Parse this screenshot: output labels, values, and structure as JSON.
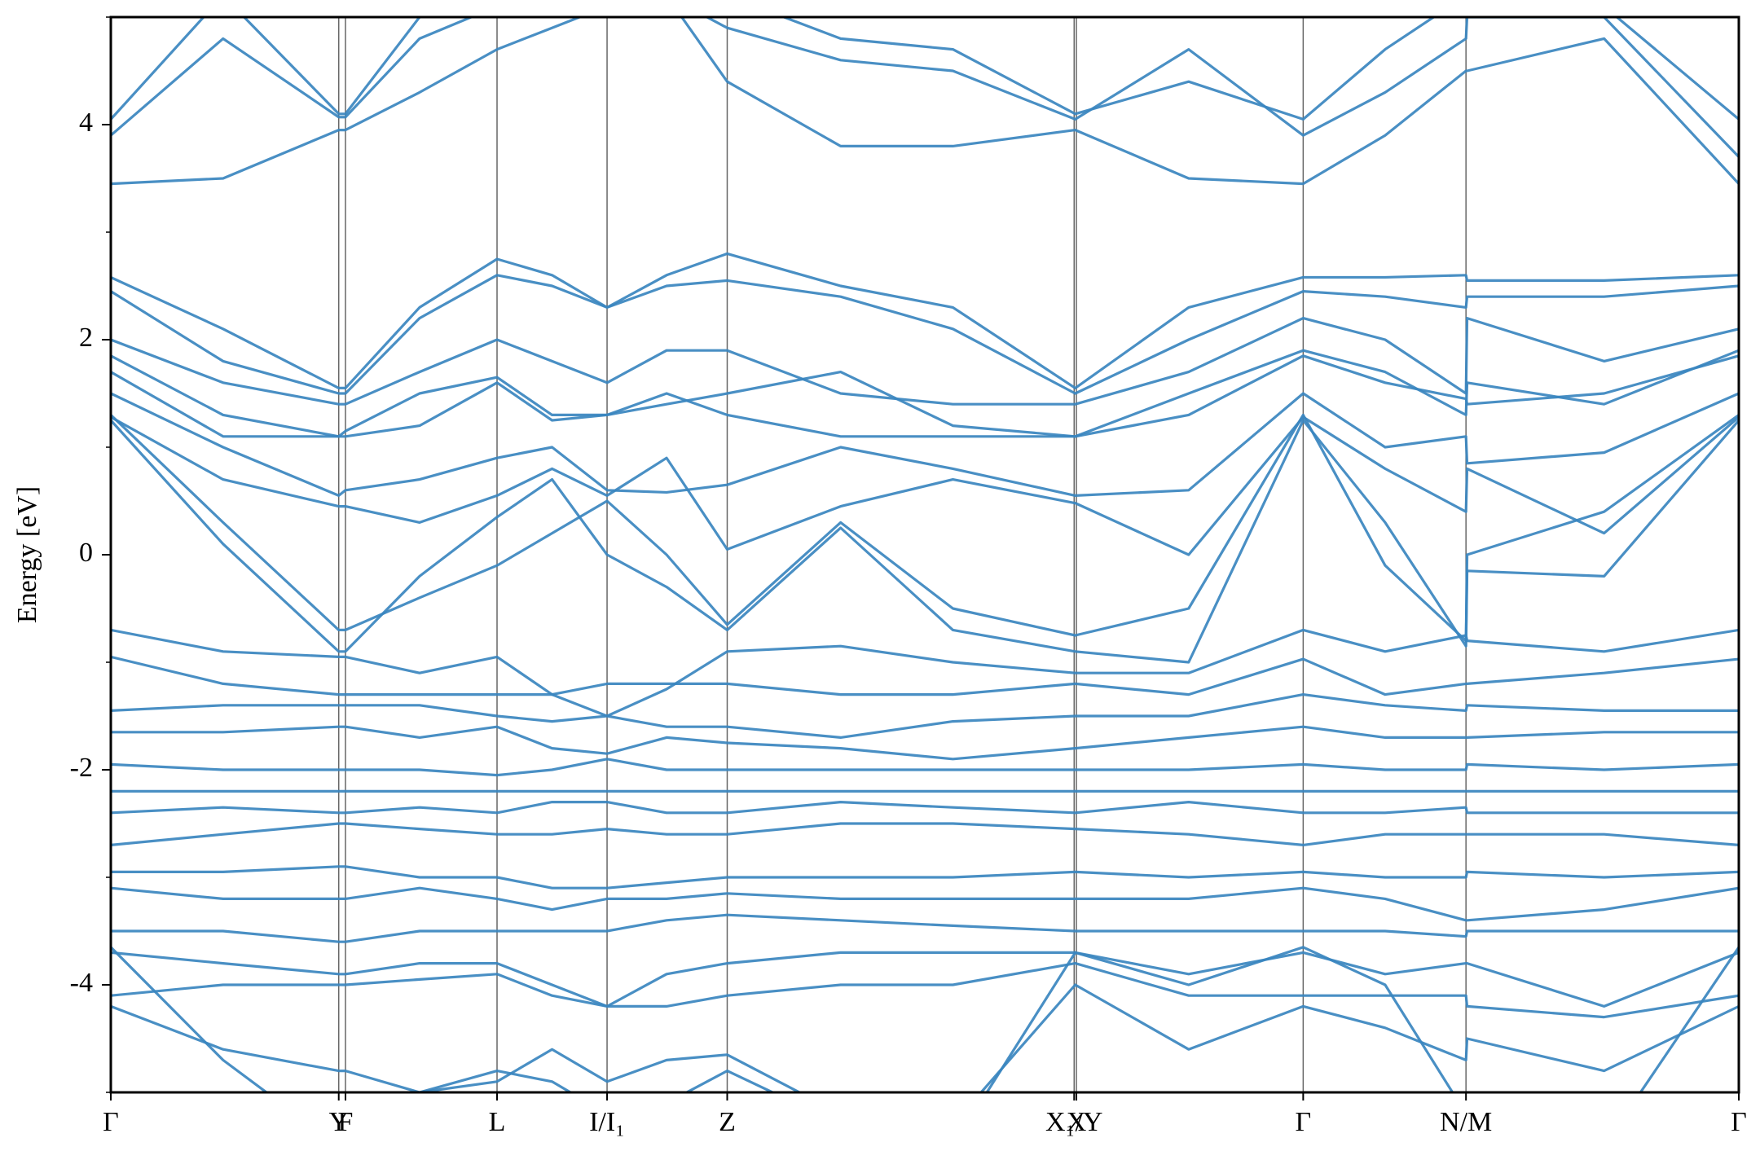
{
  "chart_data": {
    "type": "line",
    "y_label": "Energy [eV]",
    "color": "#3a85bf",
    "grid": true,
    "xlim": [
      0,
      14.5
    ],
    "xticks": [
      {
        "value": 0,
        "label": "Γ"
      },
      {
        "value": 2.03,
        "label": "Y"
      },
      {
        "value": 2.09,
        "label": "F"
      },
      {
        "value": 3.44,
        "label": "L"
      },
      {
        "value": 4.42,
        "label": "I/I₁"
      },
      {
        "value": 5.49,
        "label": "Z"
      },
      {
        "value": 8.58,
        "label": "X₁/Y"
      },
      {
        "value": 8.6,
        "label": "X"
      },
      {
        "value": 10.62,
        "label": "Γ"
      },
      {
        "value": 12.07,
        "label": "N/M"
      },
      {
        "value": 14.5,
        "label": "Γ"
      }
    ],
    "ylim": [
      -5,
      5
    ],
    "yticks": [
      -4,
      -2,
      0,
      2,
      4
    ],
    "yminorticks": [
      -5,
      -3,
      -1,
      1,
      3,
      5
    ],
    "x": [
      0,
      1,
      2.03,
      2.09,
      2.75,
      3.44,
      3.93,
      4.42,
      4.95,
      5.49,
      6.5,
      7.5,
      8.59,
      9.6,
      10.62,
      11.35,
      12.07,
      12.08,
      13.3,
      14.5
    ],
    "series": [
      {
        "values": [
          3.45,
          3.5,
          3.95,
          3.95,
          4.3,
          4.7,
          4.9,
          5.1,
          5.2,
          4.4,
          3.8,
          3.8,
          3.95,
          3.5,
          3.45,
          3.9,
          4.5,
          4.5,
          4.8,
          3.45
        ]
      },
      {
        "values": [
          3.9,
          4.8,
          4.07,
          4.07,
          4.8,
          5.1,
          5.3,
          5.3,
          5.2,
          4.9,
          4.6,
          4.5,
          4.05,
          4.7,
          3.9,
          4.3,
          4.8,
          5,
          5,
          3.7
        ]
      },
      {
        "values": [
          4.05,
          5.2,
          4.1,
          4.1,
          5,
          5.2,
          5.3,
          5.3,
          5.3,
          5.2,
          4.8,
          4.7,
          4.1,
          4.4,
          4.05,
          4.7,
          5.2,
          5.2,
          5.1,
          4.05
        ]
      },
      {
        "values": [
          1.3,
          0.3,
          -0.7,
          -0.7,
          -0.4,
          -0.1,
          0.2,
          0.5,
          0,
          -0.65,
          0.3,
          -0.5,
          -0.75,
          -0.5,
          1.3,
          -0.1,
          -0.8,
          0,
          0.4,
          1.3
        ]
      },
      {
        "values": [
          1.25,
          0.1,
          -0.9,
          -0.9,
          -0.2,
          0.35,
          0.7,
          0,
          -0.3,
          -0.7,
          0.25,
          -0.7,
          -0.9,
          -1,
          1.25,
          0.3,
          -0.85,
          -0.15,
          -0.2,
          1.25
        ]
      },
      {
        "values": [
          1.28,
          0.7,
          0.45,
          0.45,
          0.3,
          0.55,
          0.8,
          0.55,
          0.9,
          0.05,
          0.45,
          0.7,
          0.48,
          0,
          1.28,
          0.8,
          0.4,
          0.8,
          0.2,
          1.28
        ]
      },
      {
        "values": [
          1.5,
          1,
          0.55,
          0.6,
          0.7,
          0.9,
          1,
          0.6,
          0.58,
          0.65,
          1,
          0.8,
          0.55,
          0.6,
          1.5,
          1,
          1.1,
          0.85,
          0.95,
          1.5
        ]
      },
      {
        "values": [
          1.7,
          1.1,
          1.1,
          1.1,
          1.2,
          1.6,
          1.25,
          1.3,
          1.4,
          1.5,
          1.7,
          1.2,
          1.1,
          1.3,
          1.85,
          1.6,
          1.45,
          1.4,
          1.5,
          1.85
        ]
      },
      {
        "values": [
          1.85,
          1.3,
          1.1,
          1.15,
          1.5,
          1.65,
          1.3,
          1.3,
          1.5,
          1.3,
          1.1,
          1.1,
          1.1,
          1.5,
          1.9,
          1.7,
          1.3,
          1.6,
          1.4,
          1.9
        ]
      },
      {
        "values": [
          2,
          1.6,
          1.4,
          1.4,
          1.7,
          2,
          1.8,
          1.6,
          1.9,
          1.9,
          1.5,
          1.4,
          1.4,
          1.7,
          2.2,
          2,
          1.5,
          2.2,
          1.8,
          2.1
        ]
      },
      {
        "values": [
          2.45,
          1.8,
          1.5,
          1.5,
          2.2,
          2.6,
          2.5,
          2.3,
          2.5,
          2.55,
          2.4,
          2.1,
          1.5,
          2,
          2.45,
          2.4,
          2.3,
          2.4,
          2.4,
          2.5
        ]
      },
      {
        "values": [
          2.58,
          2.1,
          1.55,
          1.55,
          2.3,
          2.75,
          2.6,
          2.3,
          2.6,
          2.8,
          2.5,
          2.3,
          1.55,
          2.3,
          2.58,
          2.58,
          2.6,
          2.55,
          2.55,
          2.6
        ]
      },
      {
        "values": [
          -0.7,
          -0.9,
          -0.95,
          -0.95,
          -1.1,
          -0.95,
          -1.3,
          -1.5,
          -1.25,
          -0.9,
          -0.85,
          -1,
          -1.1,
          -1.1,
          -0.7,
          -0.9,
          -0.75,
          -0.8,
          -0.9,
          -0.7
        ]
      },
      {
        "values": [
          -0.95,
          -1.2,
          -1.3,
          -1.3,
          -1.3,
          -1.3,
          -1.3,
          -1.2,
          -1.2,
          -1.2,
          -1.3,
          -1.3,
          -1.2,
          -1.3,
          -0.97,
          -1.3,
          -1.2,
          -1.2,
          -1.1,
          -0.97
        ]
      },
      {
        "values": [
          -1.45,
          -1.4,
          -1.4,
          -1.4,
          -1.4,
          -1.5,
          -1.55,
          -1.5,
          -1.6,
          -1.6,
          -1.7,
          -1.55,
          -1.5,
          -1.5,
          -1.3,
          -1.4,
          -1.45,
          -1.4,
          -1.45,
          -1.45
        ]
      },
      {
        "values": [
          -1.65,
          -1.65,
          -1.6,
          -1.6,
          -1.7,
          -1.6,
          -1.8,
          -1.85,
          -1.7,
          -1.75,
          -1.8,
          -1.9,
          -1.8,
          -1.7,
          -1.6,
          -1.7,
          -1.7,
          -1.7,
          -1.65,
          -1.65
        ]
      },
      {
        "values": [
          -1.95,
          -2,
          -2,
          -2,
          -2,
          -2.05,
          -2,
          -1.9,
          -2,
          -2,
          -2,
          -2,
          -2,
          -2,
          -1.95,
          -2,
          -2,
          -1.95,
          -2,
          -1.95
        ]
      },
      {
        "values": [
          -2.2,
          -2.2,
          -2.2,
          -2.2,
          -2.2,
          -2.2,
          -2.2,
          -2.2,
          -2.2,
          -2.2,
          -2.2,
          -2.2,
          -2.2,
          -2.2,
          -2.2,
          -2.2,
          -2.2,
          -2.2,
          -2.2,
          -2.2
        ]
      },
      {
        "values": [
          -2.4,
          -2.35,
          -2.4,
          -2.4,
          -2.35,
          -2.4,
          -2.3,
          -2.3,
          -2.4,
          -2.4,
          -2.3,
          -2.35,
          -2.4,
          -2.3,
          -2.4,
          -2.4,
          -2.35,
          -2.4,
          -2.4,
          -2.4
        ]
      },
      {
        "values": [
          -2.7,
          -2.6,
          -2.5,
          -2.5,
          -2.55,
          -2.6,
          -2.6,
          -2.55,
          -2.6,
          -2.6,
          -2.5,
          -2.5,
          -2.55,
          -2.6,
          -2.7,
          -2.6,
          -2.6,
          -2.6,
          -2.6,
          -2.7
        ]
      },
      {
        "values": [
          -2.95,
          -2.95,
          -2.9,
          -2.9,
          -3,
          -3,
          -3.1,
          -3.1,
          -3.05,
          -3,
          -3,
          -3,
          -2.95,
          -3,
          -2.95,
          -3,
          -3,
          -2.95,
          -3,
          -2.95
        ]
      },
      {
        "values": [
          -3.1,
          -3.2,
          -3.2,
          -3.2,
          -3.1,
          -3.2,
          -3.3,
          -3.2,
          -3.2,
          -3.15,
          -3.2,
          -3.2,
          -3.2,
          -3.2,
          -3.1,
          -3.2,
          -3.4,
          -3.4,
          -3.3,
          -3.1
        ]
      },
      {
        "values": [
          -3.5,
          -3.5,
          -3.6,
          -3.6,
          -3.5,
          -3.5,
          -3.5,
          -3.5,
          -3.4,
          -3.35,
          -3.4,
          -3.45,
          -3.5,
          -3.5,
          -3.5,
          -3.5,
          -3.55,
          -3.5,
          -3.5,
          -3.5
        ]
      },
      {
        "values": [
          -3.7,
          -3.8,
          -3.9,
          -3.9,
          -3.8,
          -3.8,
          -4,
          -4.2,
          -3.9,
          -3.8,
          -3.7,
          -3.7,
          -3.7,
          -3.9,
          -3.7,
          -3.9,
          -3.8,
          -3.8,
          -4.2,
          -3.7
        ]
      },
      {
        "values": [
          -4.1,
          -4,
          -4,
          -4,
          -3.95,
          -3.9,
          -4.1,
          -4.2,
          -4.2,
          -4.1,
          -4,
          -4,
          -3.8,
          -4.1,
          -4.1,
          -4.1,
          -4.1,
          -4.2,
          -4.3,
          -4.1
        ]
      },
      {
        "values": [
          -4.2,
          -4.6,
          -4.8,
          -4.8,
          -5,
          -4.9,
          -4.6,
          -4.9,
          -4.7,
          -4.65,
          -5.2,
          -5.3,
          -4,
          -4.6,
          -4.2,
          -4.4,
          -4.7,
          -4.5,
          -4.8,
          -4.2
        ]
      },
      {
        "values": [
          -3.65,
          -4.7,
          -5.5,
          -5.5,
          -5,
          -4.8,
          -4.9,
          -5.2,
          -5.1,
          -4.8,
          -5.3,
          -5.5,
          -3.7,
          -4,
          -3.65,
          -4,
          -5.2,
          -5,
          -5.5,
          -3.65
        ]
      }
    ]
  }
}
